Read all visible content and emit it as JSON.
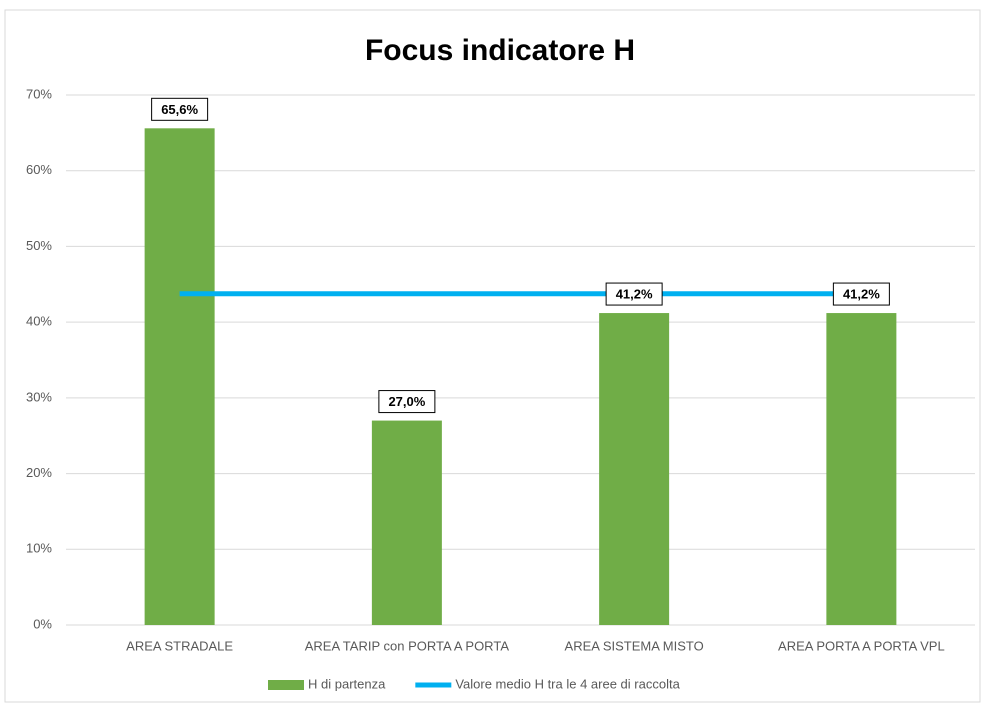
{
  "chart_data": {
    "type": "bar",
    "title": "Focus indicatore H",
    "categories": [
      "AREA STRADALE",
      "AREA TARIP con PORTA A PORTA",
      "AREA SISTEMA MISTO",
      "AREA PORTA A PORTA VPL"
    ],
    "series": [
      {
        "name": "H di partenza",
        "type": "bar",
        "color": "#70ad47",
        "values": [
          65.6,
          27.0,
          41.2,
          41.2
        ],
        "value_labels": [
          "65,6%",
          "27,0%",
          "41,2%",
          "41,2%"
        ]
      },
      {
        "name": "Valore medio H tra le 4 aree di raccolta",
        "type": "line",
        "color": "#00b0f0",
        "values": [
          43.75,
          43.75,
          43.75,
          43.75
        ]
      }
    ],
    "ylim": [
      0,
      70
    ],
    "yticks": [
      {
        "value": 0,
        "label": "0%"
      },
      {
        "value": 10,
        "label": "10%"
      },
      {
        "value": 20,
        "label": "20%"
      },
      {
        "value": 30,
        "label": "30%"
      },
      {
        "value": 40,
        "label": "40%"
      },
      {
        "value": 50,
        "label": "50%"
      },
      {
        "value": 60,
        "label": "60%"
      },
      {
        "value": 70,
        "label": "70%"
      }
    ],
    "grid": true,
    "legend": "bottom"
  }
}
